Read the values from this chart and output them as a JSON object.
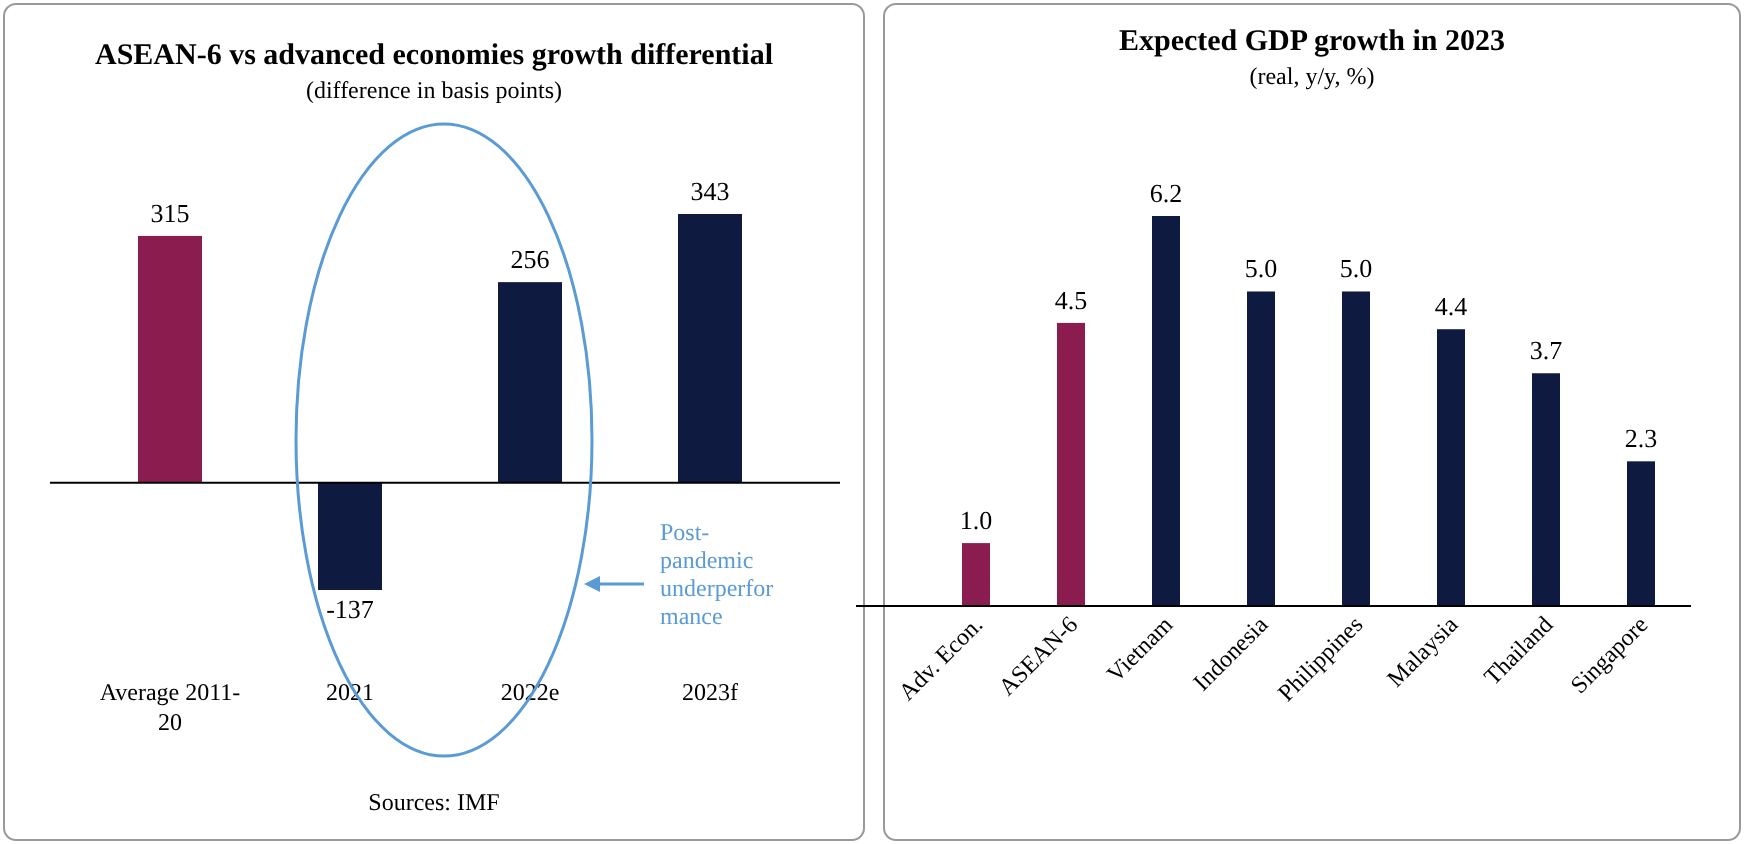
{
  "chart_data": [
    {
      "type": "bar",
      "title": "ASEAN-6 vs advanced economies growth differential",
      "subtitle": "(difference in basis points)",
      "categories": [
        "Average 2011-20",
        "2021",
        "2022e",
        "2023f"
      ],
      "values": [
        315,
        -137,
        256,
        343
      ],
      "colors": [
        "#8a1c4f",
        "#0e1a3f",
        "#0e1a3f",
        "#0e1a3f"
      ],
      "data_labels": true,
      "annotations": [
        "Post-pandemic underperformance",
        "Sources: IMF"
      ]
    },
    {
      "type": "bar",
      "title": "Expected GDP growth in 2023",
      "subtitle": "(real, y/y, %)",
      "categories": [
        "Adv. Econ.",
        "ASEAN-6",
        "Vietnam",
        "Indonesia",
        "Philippines",
        "Malaysia",
        "Thailand",
        "Singapore"
      ],
      "values": [
        1.0,
        4.5,
        6.2,
        5.0,
        5.0,
        4.4,
        3.7,
        2.3
      ],
      "value_labels": [
        "1.0",
        "4.5",
        "6.2",
        "5.0",
        "5.0",
        "4.4",
        "3.7",
        "2.3"
      ],
      "colors": [
        "#8a1c4f",
        "#8a1c4f",
        "#0e1a3f",
        "#0e1a3f",
        "#0e1a3f",
        "#0e1a3f",
        "#0e1a3f",
        "#0e1a3f"
      ]
    }
  ]
}
